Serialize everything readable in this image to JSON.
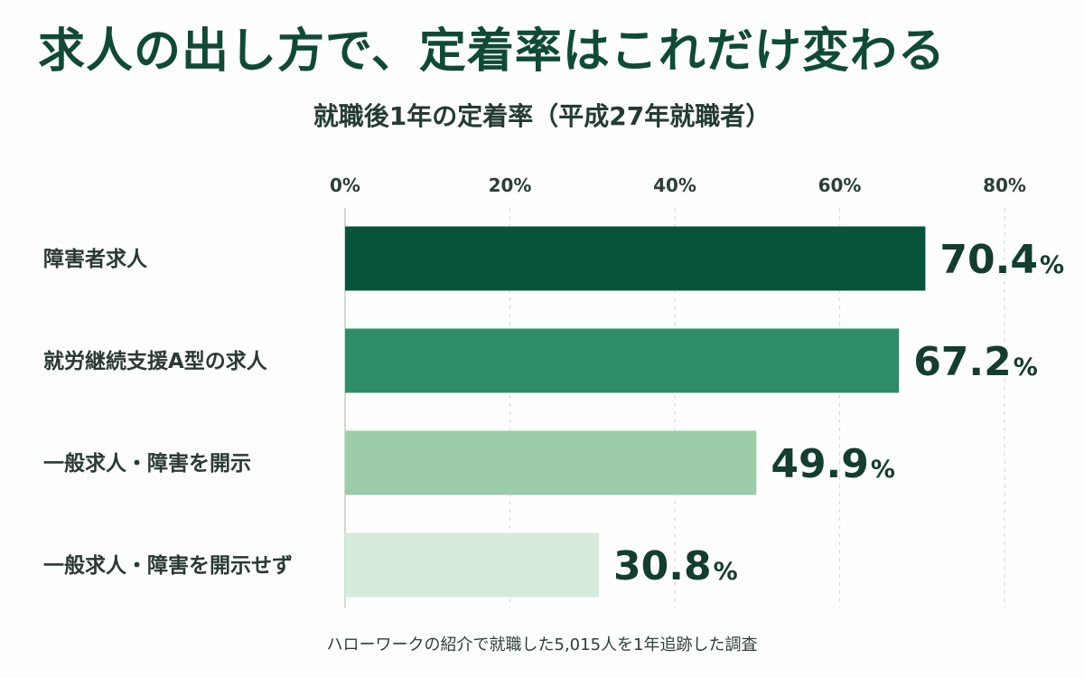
{
  "page": {
    "title": "求人の出し方で、定着率はこれだけ変わる",
    "note": "ハローワークの紹介で就職した5,015人を1年追跡した調査"
  },
  "chart_data": {
    "type": "bar",
    "orientation": "horizontal",
    "title": "就職後1年の定着率（平成27年就職者）",
    "xlabel": "",
    "ylabel": "",
    "xlim": [
      0,
      80
    ],
    "x_ticks": [
      0,
      20,
      40,
      60,
      80
    ],
    "x_tick_labels": [
      "0%",
      "20%",
      "40%",
      "60%",
      "80%"
    ],
    "grid": true,
    "legend": "none",
    "unit": "%",
    "categories": [
      "障害者求人",
      "就労継続支援A型の求人",
      "一般求人・障害を開示",
      "一般求人・障害を開示せず"
    ],
    "values": [
      70.4,
      67.2,
      49.9,
      30.8
    ],
    "value_labels": [
      "70.4",
      "67.2",
      "49.9",
      "30.8"
    ],
    "colors": [
      "#07533b",
      "#2e8c68",
      "#9ccca8",
      "#d6eadb"
    ]
  }
}
